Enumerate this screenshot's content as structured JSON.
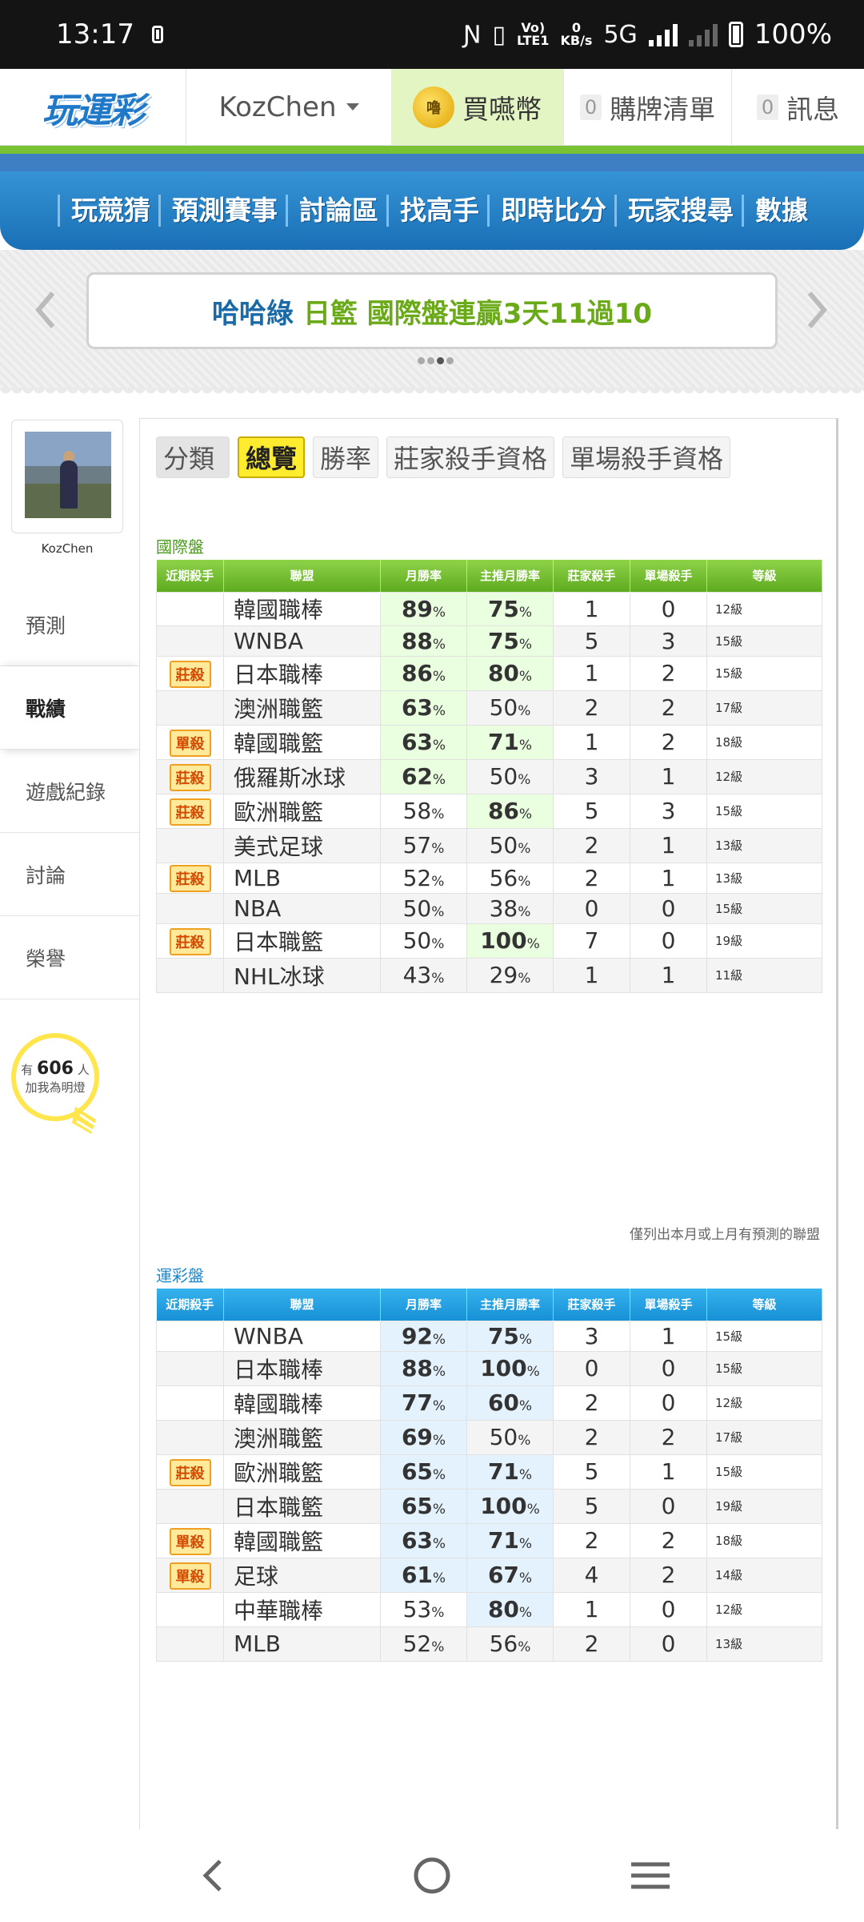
{
  "status_bar": {
    "time": "13:17",
    "network_speed_value": "0",
    "network_speed_unit": "KB/s",
    "volte": "Vo)",
    "lte": "LTE1",
    "network": "5G",
    "battery": "100%"
  },
  "header": {
    "logo": "玩運彩",
    "username": "KozChen",
    "coin_icon_label": "嚕",
    "buy_coin": "買嚥幣",
    "cart_count": "0",
    "cart": "購牌清單",
    "msg_count": "0",
    "messages": "訊息"
  },
  "nav": {
    "items": [
      "玩競猜",
      "預測賽事",
      "討論區",
      "找高手",
      "即時比分",
      "玩家搜尋",
      "數據"
    ]
  },
  "banner": {
    "text_part1": "哈哈綠",
    "text_part2": "日籃 國際盤連贏3天11過10"
  },
  "sidebar": {
    "username": "KozChen",
    "items": [
      "預測",
      "戰績",
      "遊戲紀錄",
      "討論",
      "榮譽"
    ],
    "fans_prefix": "有",
    "fans_count": "606",
    "fans_suffix": "人",
    "fans_text": "加我為明燈"
  },
  "tabs": {
    "category": "分類",
    "items": [
      "總覽",
      "勝率",
      "莊家殺手資格",
      "單場殺手資格"
    ]
  },
  "pct_sign": "%",
  "columns": [
    "近期殺手",
    "聯盟",
    "月勝率",
    "主推月勝率",
    "莊家殺手",
    "單場殺手",
    "等級"
  ],
  "intl": {
    "title": "國際盤",
    "rows": [
      {
        "badge": "",
        "league": "韓國職棒",
        "month": "89",
        "main": "75",
        "bk": "1",
        "single": "0",
        "level": "12級"
      },
      {
        "badge": "",
        "league": "WNBA",
        "month": "88",
        "main": "75",
        "bk": "5",
        "single": "3",
        "level": "15級"
      },
      {
        "badge": "莊殺",
        "league": "日本職棒",
        "month": "86",
        "main": "80",
        "bk": "1",
        "single": "2",
        "level": "15級"
      },
      {
        "badge": "",
        "league": "澳洲職籃",
        "month": "63",
        "main": "50",
        "bk": "2",
        "single": "2",
        "level": "17級"
      },
      {
        "badge": "單殺",
        "league": "韓國職籃",
        "month": "63",
        "main": "71",
        "bk": "1",
        "single": "2",
        "level": "18級"
      },
      {
        "badge": "莊殺",
        "league": "俄羅斯冰球",
        "month": "62",
        "main": "50",
        "bk": "3",
        "single": "1",
        "level": "12級"
      },
      {
        "badge": "莊殺",
        "league": "歐洲職籃",
        "month": "58",
        "main": "86",
        "bk": "5",
        "single": "3",
        "level": "15級"
      },
      {
        "badge": "",
        "league": "美式足球",
        "month": "57",
        "main": "50",
        "bk": "2",
        "single": "1",
        "level": "13級"
      },
      {
        "badge": "莊殺",
        "league": "MLB",
        "month": "52",
        "main": "56",
        "bk": "2",
        "single": "1",
        "level": "13級"
      },
      {
        "badge": "",
        "league": "NBA",
        "month": "50",
        "main": "38",
        "bk": "0",
        "single": "0",
        "level": "15級"
      },
      {
        "badge": "莊殺",
        "league": "日本職籃",
        "month": "50",
        "main": "100",
        "bk": "7",
        "single": "0",
        "level": "19級"
      },
      {
        "badge": "",
        "league": "NHL冰球",
        "month": "43",
        "main": "29",
        "bk": "1",
        "single": "1",
        "level": "11級"
      }
    ],
    "note": "僅列出本月或上月有預測的聯盟"
  },
  "lottery": {
    "title": "運彩盤",
    "rows": [
      {
        "badge": "",
        "league": "WNBA",
        "month": "92",
        "main": "75",
        "bk": "3",
        "single": "1",
        "level": "15級"
      },
      {
        "badge": "",
        "league": "日本職棒",
        "month": "88",
        "main": "100",
        "bk": "0",
        "single": "0",
        "level": "15級"
      },
      {
        "badge": "",
        "league": "韓國職棒",
        "month": "77",
        "main": "60",
        "bk": "2",
        "single": "0",
        "level": "12級"
      },
      {
        "badge": "",
        "league": "澳洲職籃",
        "month": "69",
        "main": "50",
        "bk": "2",
        "single": "2",
        "level": "17級"
      },
      {
        "badge": "莊殺",
        "league": "歐洲職籃",
        "month": "65",
        "main": "71",
        "bk": "5",
        "single": "1",
        "level": "15級"
      },
      {
        "badge": "",
        "league": "日本職籃",
        "month": "65",
        "main": "100",
        "bk": "5",
        "single": "0",
        "level": "19級"
      },
      {
        "badge": "單殺",
        "league": "韓國職籃",
        "month": "63",
        "main": "71",
        "bk": "2",
        "single": "2",
        "level": "18級"
      },
      {
        "badge": "單殺",
        "league": "足球",
        "month": "61",
        "main": "67",
        "bk": "4",
        "single": "2",
        "level": "14級"
      },
      {
        "badge": "",
        "league": "中華職棒",
        "month": "53",
        "main": "80",
        "bk": "1",
        "single": "0",
        "level": "12級"
      },
      {
        "badge": "",
        "league": "MLB",
        "month": "52",
        "main": "56",
        "bk": "2",
        "single": "0",
        "level": "13級"
      }
    ]
  },
  "colors": {
    "green_header": "#5eab1e",
    "blue_header": "#1790d6",
    "nav_blue": "#1a6fb5",
    "badge_orange": "#d44a00"
  }
}
